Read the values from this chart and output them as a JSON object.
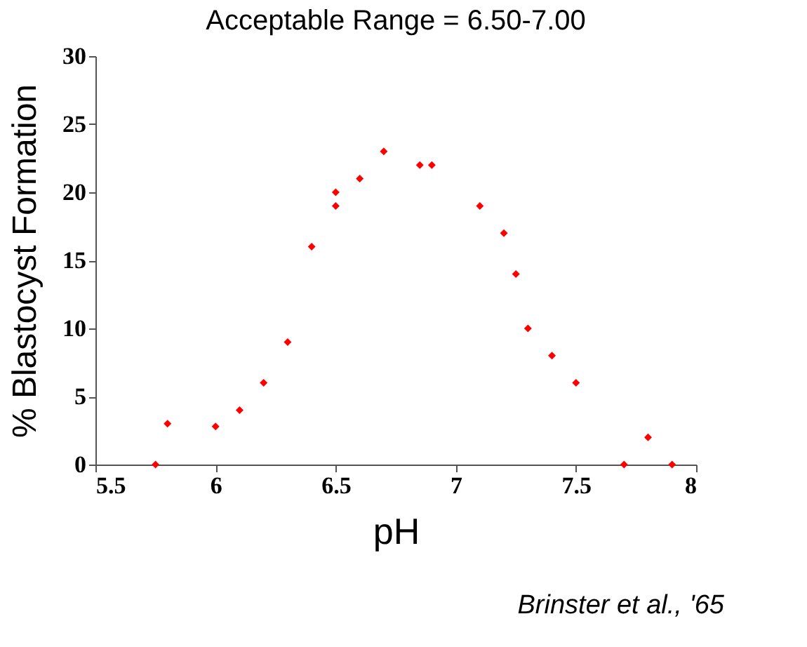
{
  "chart_data": {
    "type": "scatter",
    "title": "Acceptable Range = 6.50-7.00",
    "xlabel": "pH",
    "ylabel": "% Blastocyst Formation",
    "annotations": [
      "Brinster et al., '65"
    ],
    "x": [
      5.75,
      5.8,
      6.0,
      6.1,
      6.2,
      6.3,
      6.4,
      6.5,
      6.5,
      6.6,
      6.7,
      6.85,
      6.9,
      7.1,
      7.2,
      7.25,
      7.3,
      7.4,
      7.5,
      7.7,
      7.8,
      7.9
    ],
    "series": [
      {
        "color": "#ff0000",
        "values": [
          0,
          3,
          2.8,
          4,
          6,
          9,
          16,
          20,
          19,
          21,
          23,
          22,
          22,
          19,
          17,
          14,
          10,
          8,
          6,
          0,
          2,
          0
        ]
      }
    ],
    "xlim": [
      5.5,
      8
    ],
    "xticks": [
      5.5,
      6,
      6.5,
      7,
      7.5,
      8
    ],
    "ylim": [
      0,
      30
    ],
    "yticks": [
      0,
      5,
      10,
      15,
      20,
      25,
      30
    ],
    "grid": false,
    "marker": "diamond"
  }
}
